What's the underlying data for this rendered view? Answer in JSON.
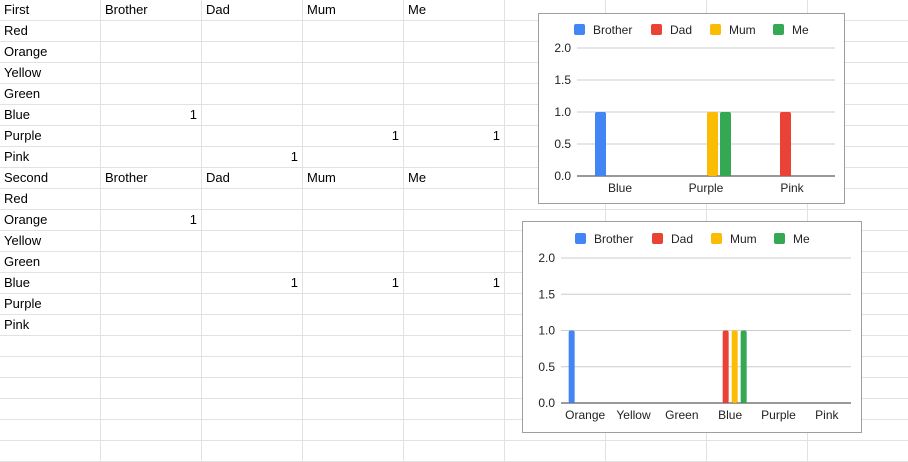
{
  "sheet": {
    "rows": [
      [
        "First",
        "Brother",
        "Dad",
        "Mum",
        "Me"
      ],
      [
        "Red",
        "",
        "",
        "",
        ""
      ],
      [
        "Orange",
        "",
        "",
        "",
        ""
      ],
      [
        "Yellow",
        "",
        "",
        "",
        ""
      ],
      [
        "Green",
        "",
        "",
        "",
        ""
      ],
      [
        "Blue",
        "1",
        "",
        "",
        ""
      ],
      [
        "Purple",
        "",
        "",
        "1",
        "1"
      ],
      [
        "Pink",
        "",
        "1",
        "",
        ""
      ],
      [
        "Second",
        "Brother",
        "Dad",
        "Mum",
        "Me"
      ],
      [
        "Red",
        "",
        "",
        "",
        ""
      ],
      [
        "Orange",
        "1",
        "",
        "",
        ""
      ],
      [
        "Yellow",
        "",
        "",
        "",
        ""
      ],
      [
        "Green",
        "",
        "",
        "",
        ""
      ],
      [
        "Blue",
        "",
        "1",
        "1",
        "1"
      ],
      [
        "Purple",
        "",
        "",
        "",
        ""
      ],
      [
        "Pink",
        "",
        "",
        "",
        ""
      ]
    ]
  },
  "chart_data": [
    {
      "type": "bar",
      "legend_position": "top",
      "grid": true,
      "ylim": [
        0,
        2
      ],
      "yticks": [
        "0.0",
        "0.5",
        "1.0",
        "1.5",
        "2.0"
      ],
      "categories": [
        "Blue",
        "Purple",
        "Pink"
      ],
      "series": [
        {
          "name": "Brother",
          "color": "#4285f4",
          "values": [
            1,
            0,
            0
          ]
        },
        {
          "name": "Dad",
          "color": "#ea4335",
          "values": [
            0,
            0,
            1
          ]
        },
        {
          "name": "Mum",
          "color": "#fbbc04",
          "values": [
            0,
            1,
            0
          ]
        },
        {
          "name": "Me",
          "color": "#34a853",
          "values": [
            0,
            1,
            0
          ]
        }
      ]
    },
    {
      "type": "bar",
      "legend_position": "top",
      "grid": true,
      "ylim": [
        0,
        2
      ],
      "yticks": [
        "0.0",
        "0.5",
        "1.0",
        "1.5",
        "2.0"
      ],
      "categories": [
        "Orange",
        "Yellow",
        "Green",
        "Blue",
        "Purple",
        "Pink"
      ],
      "series": [
        {
          "name": "Brother",
          "color": "#4285f4",
          "values": [
            1,
            0,
            0,
            0,
            0,
            0
          ]
        },
        {
          "name": "Dad",
          "color": "#ea4335",
          "values": [
            0,
            0,
            0,
            1,
            0,
            0
          ]
        },
        {
          "name": "Mum",
          "color": "#fbbc04",
          "values": [
            0,
            0,
            0,
            1,
            0,
            0
          ]
        },
        {
          "name": "Me",
          "color": "#34a853",
          "values": [
            0,
            0,
            0,
            1,
            0,
            0
          ]
        }
      ]
    }
  ]
}
